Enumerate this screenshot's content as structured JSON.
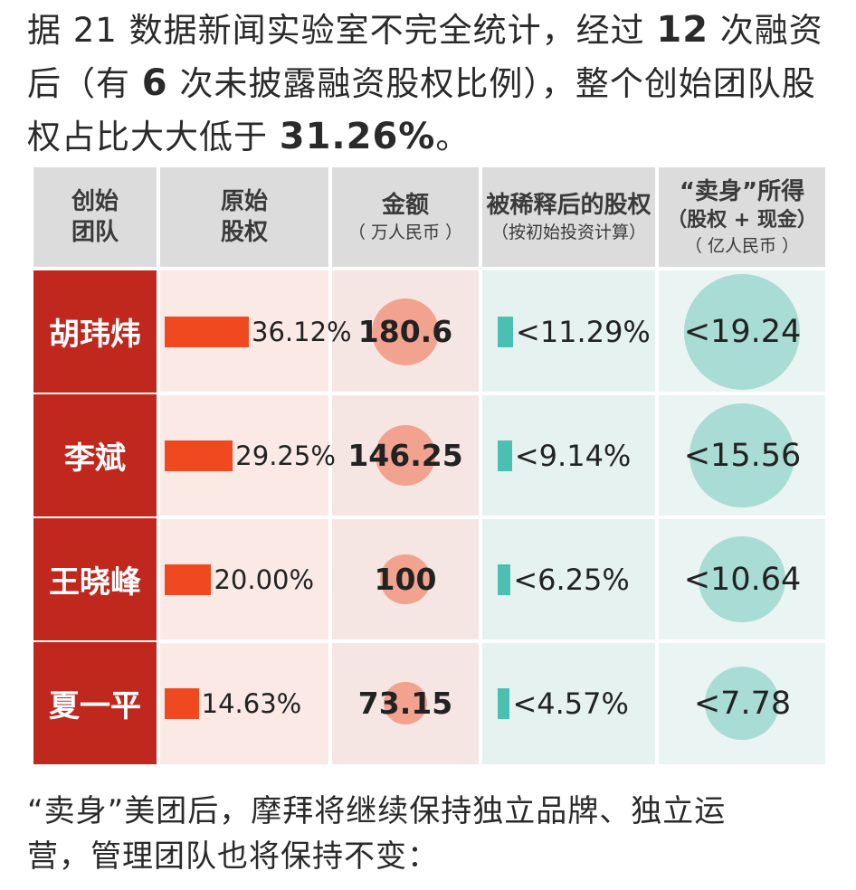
{
  "intro": {
    "p1": "据 21 数据新闻实验室不完全统计，经过 ",
    "b1": "12",
    "p2": " 次融资后（有 ",
    "b2": "6",
    "p3": " 次未披露融资股权比例），整个创始团队股权占比大大低于 ",
    "b3": "31.26%",
    "p4": "。"
  },
  "headers": [
    {
      "lines": [
        "创始",
        "团队"
      ],
      "sub": []
    },
    {
      "lines": [
        "原始",
        "股权"
      ],
      "sub": []
    },
    {
      "lines": [
        "金额"
      ],
      "sub": [
        "（ 万人民币 ）"
      ]
    },
    {
      "lines": [
        "被稀释后的股权"
      ],
      "sub": [
        "（按初始投资计算）"
      ]
    },
    {
      "lines": [
        "“卖身”所得",
        "（股权 + 现金）"
      ],
      "sub": [
        "（ 亿人民币 ）"
      ]
    }
  ],
  "chart_data": {
    "type": "table",
    "columns": [
      "创始团队",
      "原始股权",
      "金额（万人民币）",
      "被稀释后的股权（按初始投资计算）",
      "“卖身”所得（股权 + 现金）（亿人民币）"
    ],
    "rows": [
      {
        "name": "胡玮炜",
        "equity": 36.12,
        "equity_label": "36.12%",
        "amount": 180.6,
        "amount_label": "180.6",
        "diluted": 11.29,
        "diluted_label": "<11.29%",
        "proceeds": 19.24,
        "proceeds_label": "<19.24"
      },
      {
        "name": "李斌",
        "equity": 29.25,
        "equity_label": "29.25%",
        "amount": 146.25,
        "amount_label": "146.25",
        "diluted": 9.14,
        "diluted_label": "<9.14%",
        "proceeds": 15.56,
        "proceeds_label": "<15.56"
      },
      {
        "name": "王晓峰",
        "equity": 20.0,
        "equity_label": "20.00%",
        "amount": 100,
        "amount_label": "100",
        "diluted": 6.25,
        "diluted_label": "<6.25%",
        "proceeds": 10.64,
        "proceeds_label": "<10.64"
      },
      {
        "name": "夏一平",
        "equity": 14.63,
        "equity_label": "14.63%",
        "amount": 73.15,
        "amount_label": "73.15",
        "diluted": 4.57,
        "diluted_label": "<4.57%",
        "proceeds": 7.78,
        "proceeds_label": "<7.78"
      }
    ]
  },
  "colors": {
    "name_bg": "#c0271d",
    "equity_bar": "#f0481f",
    "amount_circle": "#f2a38f",
    "diluted_bar": "#4bbfb2",
    "proceeds_circle": "#a9dcd4",
    "equity_col_bg": "#fbe9e6",
    "amount_col_bg": "#f6e6e3",
    "diluted_col_bg": "#e5f2f0",
    "proceeds_col_bg": "#eaf4f2"
  },
  "outro": {
    "line1": "“卖身”美团后，摩拜将继续保持独立品牌、独立运",
    "line2": "营，管理团队也将保持不变："
  }
}
